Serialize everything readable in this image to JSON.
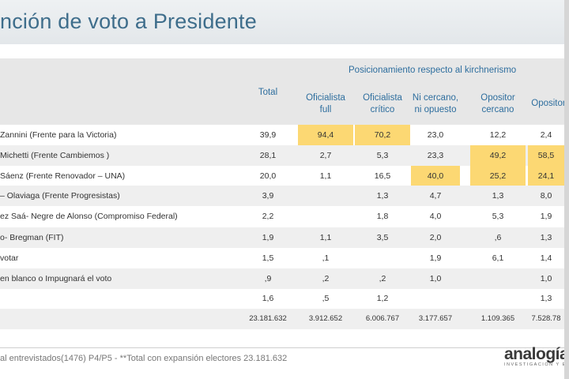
{
  "title": "nción de voto a Presidente",
  "header": {
    "total": "Total",
    "group_label": "Posicionamiento respecto al kirchnerismo",
    "columns": [
      [
        "Oficialista",
        "full"
      ],
      [
        "Oficialista",
        "crítico"
      ],
      [
        "Ni cercano,",
        "ni opuesto"
      ],
      [
        "Opositor",
        "cercano"
      ],
      [
        "Opositor",
        ""
      ]
    ]
  },
  "rows": [
    {
      "label": "Zannini (Frente para la Victoria)",
      "values": [
        "39,9",
        "94,4",
        "70,2",
        "23,0",
        "12,2",
        "2,4"
      ],
      "hl": [
        1,
        2
      ]
    },
    {
      "label": "Michetti  (Frente Cambiemos )",
      "values": [
        "28,1",
        "2,7",
        "5,3",
        "23,3",
        "49,2",
        "58,5"
      ],
      "hl": [
        4,
        5
      ]
    },
    {
      "label": "Sáenz (Frente Renovador – UNA)",
      "values": [
        "20,0",
        "1,1",
        "16,5",
        "40,0",
        "25,2",
        "24,1"
      ],
      "hl": [
        3,
        4,
        5
      ]
    },
    {
      "label": "– Olaviaga  (Frente Progresistas)",
      "values": [
        "3,9",
        "",
        "1,3",
        "4,7",
        "1,3",
        "8,0"
      ],
      "hl": []
    },
    {
      "label": "ez Saá- Negre de Alonso (Compromiso Federal)",
      "values": [
        "2,2",
        "",
        "1,8",
        "4,0",
        "5,3",
        "1,9"
      ],
      "hl": []
    },
    {
      "label": "o- Bregman (FIT)",
      "values": [
        "1,9",
        "1,1",
        "3,5",
        "2,0",
        ",6",
        "1,3"
      ],
      "hl": []
    },
    {
      "label": " votar",
      "values": [
        "1,5",
        ",1",
        "",
        "1,9",
        "6,1",
        "1,4"
      ],
      "hl": []
    },
    {
      "label": "en blanco o Impugnará el voto",
      "values": [
        ",9",
        ",2",
        ",2",
        "1,0",
        "",
        "1,0"
      ],
      "hl": []
    },
    {
      "label": "",
      "values": [
        "1,6",
        ",5",
        "1,2",
        "",
        "",
        "1,3"
      ],
      "hl": []
    },
    {
      "label": "",
      "values": [
        "23.181.632",
        "3.912.652",
        "6.006.767",
        "3.177.657",
        "1.109.365",
        "7.528.78"
      ],
      "hl": []
    }
  ],
  "footnote": "al entrevistados(1476) P4/P5   -   **Total con expansión electores 23.181.632",
  "logo": {
    "name": "analogía",
    "tagline": "INVESTIGACION Y ESTRATE"
  },
  "colors": {
    "title": "#3e6d8b",
    "header_text": "#2e6e9e",
    "highlight": "#fcd873"
  }
}
